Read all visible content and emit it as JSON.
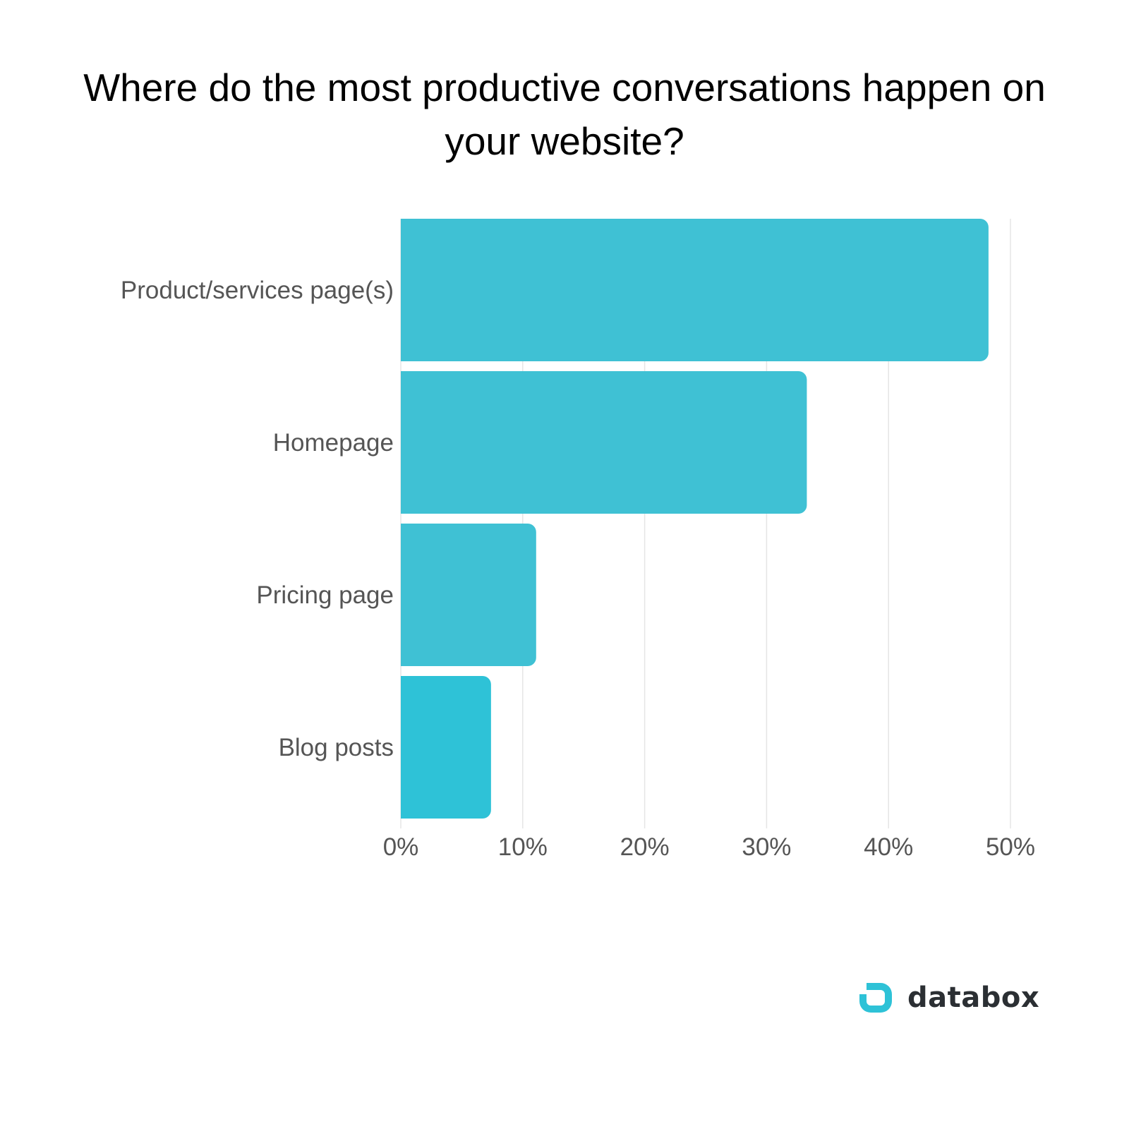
{
  "chart_data": {
    "type": "bar",
    "orientation": "horizontal",
    "title": "Where do the most productive conversations happen on your website?",
    "categories": [
      "Product/services page(s)",
      "Homepage",
      "Pricing page",
      "Blog posts"
    ],
    "values": [
      48.2,
      33.3,
      11.1,
      7.4
    ],
    "value_unit": "%",
    "xlim": [
      0,
      50
    ],
    "xticks": [
      "0%",
      "10%",
      "20%",
      "30%",
      "40%",
      "50%"
    ],
    "xtick_values": [
      0,
      10,
      20,
      30,
      40,
      50
    ],
    "bar_colors": [
      "#3fc1d4",
      "#3fc1d4",
      "#3fc1d4",
      "#2ec2d7"
    ],
    "grid": "vertical",
    "xlabel": "",
    "ylabel": ""
  },
  "brand": {
    "name": "databox",
    "logo_icon": "databox-logo-icon",
    "logo_color": "#2ec2d7"
  }
}
